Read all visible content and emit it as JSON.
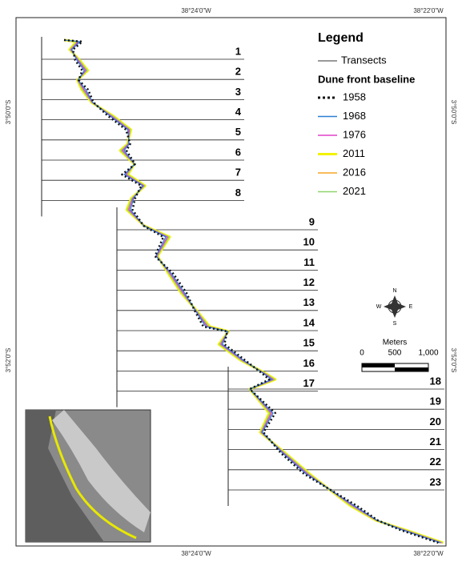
{
  "axis_labels": {
    "top": [
      "38°24'0\"W",
      "38°22'0\"W"
    ],
    "bottom": [
      "38°24'0\"W",
      "38°22'0\"W"
    ],
    "left": [
      "3°50'0\"S",
      "3°52'0\"S"
    ],
    "right": [
      "3°50'0\"S",
      "3°52'0\"S"
    ]
  },
  "legend": {
    "title": "Legend",
    "transects": "Transects",
    "baseline_title": "Dune front baseline",
    "years": [
      {
        "label": "1958",
        "color": "#111111",
        "style": "dotted"
      },
      {
        "label": "1968",
        "color": "#2a7fd4",
        "style": "solid"
      },
      {
        "label": "1976",
        "color": "#e040c8",
        "style": "solid"
      },
      {
        "label": "2011",
        "color": "#f2f200",
        "style": "solid"
      },
      {
        "label": "2016",
        "color": "#f5a623",
        "style": "solid"
      },
      {
        "label": "2021",
        "color": "#8fd46a",
        "style": "solid"
      }
    ]
  },
  "transects": [
    "1",
    "2",
    "3",
    "4",
    "5",
    "6",
    "7",
    "8",
    "9",
    "10",
    "11",
    "12",
    "13",
    "14",
    "15",
    "16",
    "17",
    "18",
    "19",
    "20",
    "21",
    "22",
    "23"
  ],
  "compass": {
    "n": "N",
    "s": "S",
    "e": "E",
    "w": "W"
  },
  "scale": {
    "title": "Meters",
    "labels": [
      "0",
      "500",
      "1,000"
    ]
  }
}
